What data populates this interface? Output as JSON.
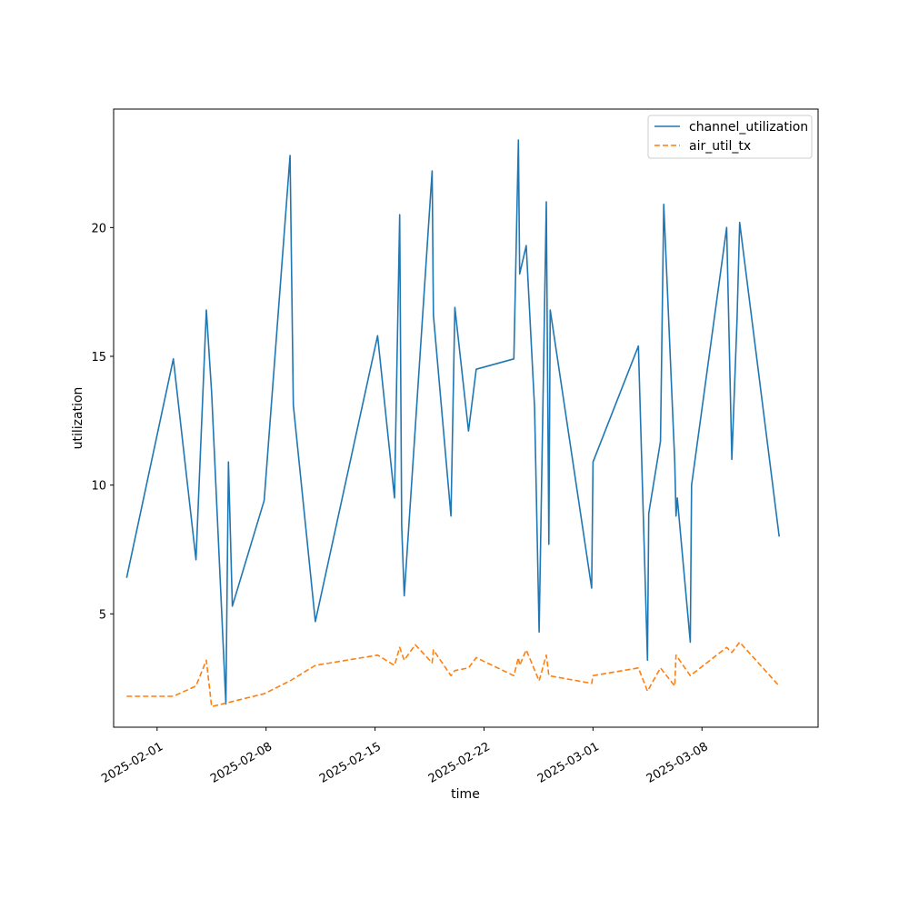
{
  "chart_data": {
    "type": "line",
    "xlabel": "time",
    "ylabel": "utilization",
    "x_is_date": true,
    "xlim": [
      "2025-01-29T05:00",
      "2025-03-15T11:00"
    ],
    "ylim": [
      0.6,
      24.6
    ],
    "x_ticks": [
      "2025-02-01",
      "2025-02-08",
      "2025-02-15",
      "2025-02-22",
      "2025-03-01",
      "2025-03-08"
    ],
    "y_ticks": [
      5,
      10,
      15,
      20
    ],
    "grid": false,
    "legend_position": "top-right",
    "series": [
      {
        "name": "channel_utilization",
        "color": "#1f77b4",
        "style": "solid",
        "points": [
          [
            "2025-01-30T01:00",
            6.4
          ],
          [
            "2025-02-02T01:00",
            14.9
          ],
          [
            "2025-02-03T12:00",
            7.1
          ],
          [
            "2025-02-04T04:00",
            16.8
          ],
          [
            "2025-02-04T12:00",
            13.6
          ],
          [
            "2025-02-05T10:00",
            1.5
          ],
          [
            "2025-02-05T14:00",
            10.9
          ],
          [
            "2025-02-05T20:00",
            5.3
          ],
          [
            "2025-02-07T21:00",
            9.4
          ],
          [
            "2025-02-09T13:00",
            22.8
          ],
          [
            "2025-02-09T18:00",
            13.1
          ],
          [
            "2025-02-11T04:00",
            4.7
          ],
          [
            "2025-02-15T04:00",
            15.8
          ],
          [
            "2025-02-16T06:00",
            9.5
          ],
          [
            "2025-02-16T14:00",
            20.5
          ],
          [
            "2025-02-16T17:00",
            8.4
          ],
          [
            "2025-02-16T21:00",
            5.7
          ],
          [
            "2025-02-18T16:00",
            22.2
          ],
          [
            "2025-02-18T18:00",
            16.6
          ],
          [
            "2025-02-19T21:00",
            8.8
          ],
          [
            "2025-02-20T03:00",
            16.9
          ],
          [
            "2025-02-21T00:00",
            12.1
          ],
          [
            "2025-02-21T12:00",
            14.5
          ],
          [
            "2025-02-23T22:00",
            14.9
          ],
          [
            "2025-02-24T05:00",
            23.4
          ],
          [
            "2025-02-24T07:00",
            18.2
          ],
          [
            "2025-02-24T17:00",
            19.3
          ],
          [
            "2025-02-25T06:00",
            13.0
          ],
          [
            "2025-02-25T13:00",
            4.3
          ],
          [
            "2025-02-26T00:00",
            21.0
          ],
          [
            "2025-02-26T04:00",
            7.7
          ],
          [
            "2025-02-26T06:00",
            16.8
          ],
          [
            "2025-02-28T22:00",
            6.0
          ],
          [
            "2025-03-01T00:00",
            10.9
          ],
          [
            "2025-03-03T22:00",
            15.4
          ],
          [
            "2025-03-04T12:00",
            3.2
          ],
          [
            "2025-03-04T14:00",
            8.9
          ],
          [
            "2025-03-05T08:00",
            11.7
          ],
          [
            "2025-03-05T13:00",
            20.9
          ],
          [
            "2025-03-06T06:00",
            10.9
          ],
          [
            "2025-03-06T08:00",
            8.8
          ],
          [
            "2025-03-06T10:00",
            9.5
          ],
          [
            "2025-03-07T06:00",
            3.9
          ],
          [
            "2025-03-07T08:00",
            10.0
          ],
          [
            "2025-03-09T14:00",
            20.0
          ],
          [
            "2025-03-09T22:00",
            11.0
          ],
          [
            "2025-03-10T06:00",
            16.4
          ],
          [
            "2025-03-10T10:00",
            20.2
          ],
          [
            "2025-03-12T23:00",
            8.0
          ]
        ]
      },
      {
        "name": "air_util_tx",
        "color": "#ff7f0e",
        "style": "dashed",
        "points": [
          [
            "2025-01-30T01:00",
            1.8
          ],
          [
            "2025-02-02T01:00",
            1.8
          ],
          [
            "2025-02-03T12:00",
            2.2
          ],
          [
            "2025-02-04T04:00",
            3.2
          ],
          [
            "2025-02-04T12:00",
            1.4
          ],
          [
            "2025-02-07T21:00",
            1.9
          ],
          [
            "2025-02-09T13:00",
            2.4
          ],
          [
            "2025-02-11T04:00",
            3.0
          ],
          [
            "2025-02-15T04:00",
            3.4
          ],
          [
            "2025-02-16T06:00",
            3.0
          ],
          [
            "2025-02-16T14:00",
            3.7
          ],
          [
            "2025-02-16T21:00",
            3.2
          ],
          [
            "2025-02-17T14:00",
            3.8
          ],
          [
            "2025-02-18T16:00",
            3.1
          ],
          [
            "2025-02-18T18:00",
            3.6
          ],
          [
            "2025-02-19T21:00",
            2.6
          ],
          [
            "2025-02-20T03:00",
            2.8
          ],
          [
            "2025-02-21T00:00",
            2.9
          ],
          [
            "2025-02-21T12:00",
            3.3
          ],
          [
            "2025-02-23T22:00",
            2.6
          ],
          [
            "2025-02-24T05:00",
            3.3
          ],
          [
            "2025-02-24T07:00",
            3.0
          ],
          [
            "2025-02-24T17:00",
            3.6
          ],
          [
            "2025-02-25T13:00",
            2.4
          ],
          [
            "2025-02-26T00:00",
            3.4
          ],
          [
            "2025-02-26T04:00",
            2.6
          ],
          [
            "2025-02-28T22:00",
            2.3
          ],
          [
            "2025-03-01T00:00",
            2.6
          ],
          [
            "2025-03-03T22:00",
            2.9
          ],
          [
            "2025-03-04T12:00",
            2.0
          ],
          [
            "2025-03-05T08:00",
            2.9
          ],
          [
            "2025-03-06T06:00",
            2.2
          ],
          [
            "2025-03-06T08:00",
            3.4
          ],
          [
            "2025-03-07T06:00",
            2.6
          ],
          [
            "2025-03-09T14:00",
            3.7
          ],
          [
            "2025-03-09T22:00",
            3.5
          ],
          [
            "2025-03-10T10:00",
            3.9
          ],
          [
            "2025-03-12T23:00",
            2.2
          ]
        ]
      }
    ]
  }
}
